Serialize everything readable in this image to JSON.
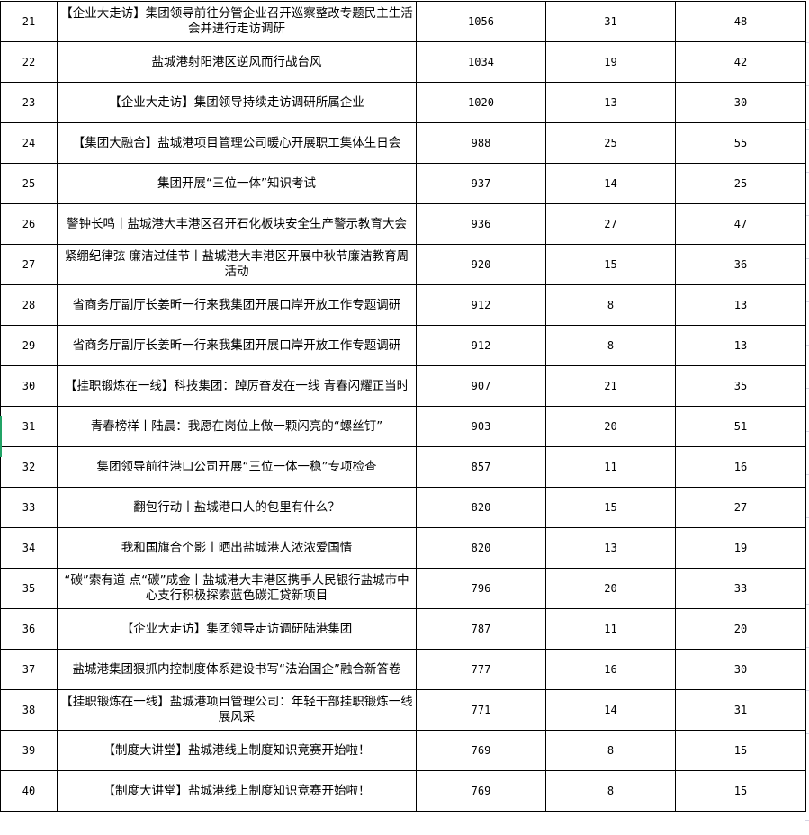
{
  "accent_color": "#21a366",
  "selected_row_index": 31,
  "rows": [
    {
      "rank": "21",
      "title": "【企业大走访】集团领导前往分管企业召开巡察整改专题民主生活会并进行走访调研",
      "reads": "1056",
      "c3": "31",
      "c4": "48"
    },
    {
      "rank": "22",
      "title": "盐城港射阳港区逆风而行战台风",
      "reads": "1034",
      "c3": "19",
      "c4": "42"
    },
    {
      "rank": "23",
      "title": "【企业大走访】集团领导持续走访调研所属企业",
      "reads": "1020",
      "c3": "13",
      "c4": "30"
    },
    {
      "rank": "24",
      "title": "【集团大融合】盐城港项目管理公司暖心开展职工集体生日会",
      "reads": "988",
      "c3": "25",
      "c4": "55"
    },
    {
      "rank": "25",
      "title": "集团开展“三位一体”知识考试",
      "reads": "937",
      "c3": "14",
      "c4": "25"
    },
    {
      "rank": "26",
      "title": "警钟长鸣丨盐城港大丰港区召开石化板块安全生产警示教育大会",
      "reads": "936",
      "c3": "27",
      "c4": "47"
    },
    {
      "rank": "27",
      "title": "紧绷纪律弦  廉洁过佳节丨盐城港大丰港区开展中秋节廉洁教育周活动",
      "reads": "920",
      "c3": "15",
      "c4": "36"
    },
    {
      "rank": "28",
      "title": "省商务厅副厅长姜昕一行来我集团开展口岸开放工作专题调研",
      "reads": "912",
      "c3": "8",
      "c4": "13"
    },
    {
      "rank": "29",
      "title": "省商务厅副厅长姜昕一行来我集团开展口岸开放工作专题调研",
      "reads": "912",
      "c3": "8",
      "c4": "13"
    },
    {
      "rank": "30",
      "title": "【挂职锻炼在一线】科技集团：踔厉奋发在一线  青春闪耀正当时",
      "reads": "907",
      "c3": "21",
      "c4": "35"
    },
    {
      "rank": "31",
      "title": "青春榜样丨陆晨：我愿在岗位上做一颗闪亮的“螺丝钉”",
      "reads": "903",
      "c3": "20",
      "c4": "51"
    },
    {
      "rank": "32",
      "title": "集团领导前往港口公司开展“三位一体一稳”专项检查",
      "reads": "857",
      "c3": "11",
      "c4": "16"
    },
    {
      "rank": "33",
      "title": "翻包行动丨盐城港口人的包里有什么？",
      "reads": "820",
      "c3": "15",
      "c4": "27"
    },
    {
      "rank": "34",
      "title": "我和国旗合个影丨晒出盐城港人浓浓爱国情",
      "reads": "820",
      "c3": "13",
      "c4": "19"
    },
    {
      "rank": "35",
      "title": "“碳”索有道 点“碳”成金丨盐城港大丰港区携手人民银行盐城市中心支行积极探索蓝色碳汇贷新项目",
      "reads": "796",
      "c3": "20",
      "c4": "33"
    },
    {
      "rank": "36",
      "title": "【企业大走访】集团领导走访调研陆港集团",
      "reads": "787",
      "c3": "11",
      "c4": "20"
    },
    {
      "rank": "37",
      "title": "盐城港集团狠抓内控制度体系建设书写“法治国企”融合新答卷",
      "reads": "777",
      "c3": "16",
      "c4": "30"
    },
    {
      "rank": "38",
      "title": "【挂职锻炼在一线】盐城港项目管理公司：年轻干部挂职锻炼一线展风采",
      "reads": "771",
      "c3": "14",
      "c4": "31"
    },
    {
      "rank": "39",
      "title": "【制度大讲堂】盐城港线上制度知识竞赛开始啦！",
      "reads": "769",
      "c3": "8",
      "c4": "15"
    },
    {
      "rank": "40",
      "title": "【制度大讲堂】盐城港线上制度知识竞赛开始啦！",
      "reads": "769",
      "c3": "8",
      "c4": "15"
    }
  ]
}
